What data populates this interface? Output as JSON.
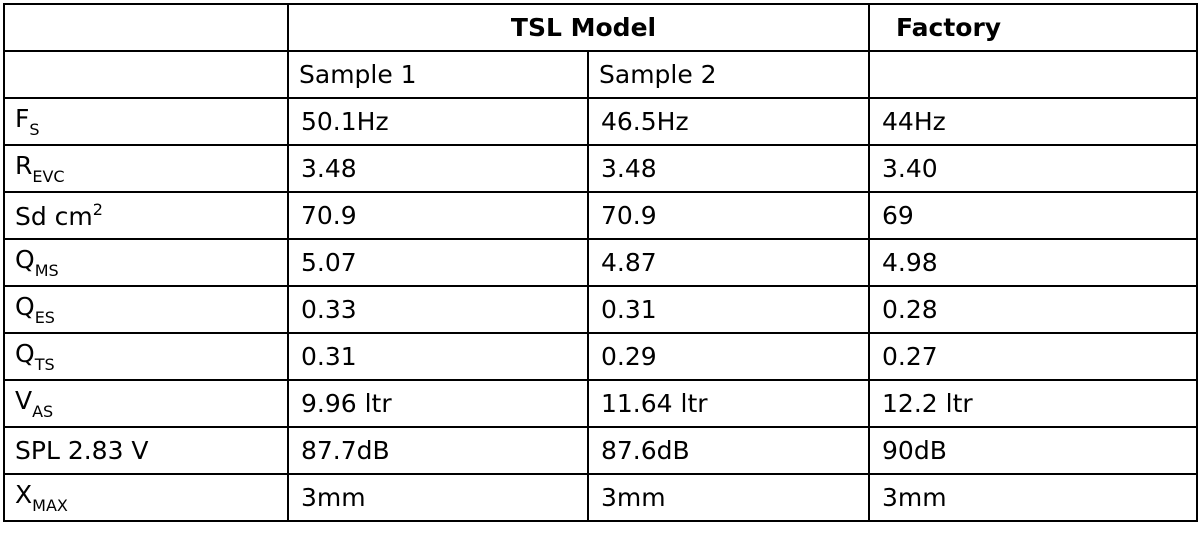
{
  "table": {
    "group_headers": [
      "TSL Model",
      "Factory"
    ],
    "sub_headers": [
      "Sample 1",
      "Sample 2"
    ],
    "rows": [
      {
        "param": {
          "text": "F",
          "sub": "S"
        },
        "values": [
          "50.1Hz",
          "46.5Hz",
          "44Hz"
        ]
      },
      {
        "param": {
          "text": "R",
          "sub": "EVC"
        },
        "values": [
          "3.48",
          "3.48",
          "3.40"
        ]
      },
      {
        "param": {
          "text": "Sd cm",
          "sup": "2"
        },
        "values": [
          "70.9",
          "70.9",
          "69"
        ]
      },
      {
        "param": {
          "text": "Q",
          "sub": "MS"
        },
        "values": [
          "5.07",
          "4.87",
          "4.98"
        ]
      },
      {
        "param": {
          "text": "Q",
          "sub": "ES"
        },
        "values": [
          "0.33",
          "0.31",
          "0.28"
        ]
      },
      {
        "param": {
          "text": "Q",
          "sub": "TS"
        },
        "values": [
          "0.31",
          "0.29",
          "0.27"
        ]
      },
      {
        "param": {
          "text": "V",
          "sub": "AS"
        },
        "values": [
          "9.96 ltr",
          "11.64 ltr",
          "12.2 ltr"
        ]
      },
      {
        "param": {
          "text": "SPL 2.83 V"
        },
        "values": [
          "87.7dB",
          "87.6dB",
          "90dB"
        ]
      },
      {
        "param": {
          "text": "X",
          "sub": "MAX"
        },
        "values": [
          "3mm",
          "3mm",
          "3mm"
        ]
      }
    ]
  }
}
